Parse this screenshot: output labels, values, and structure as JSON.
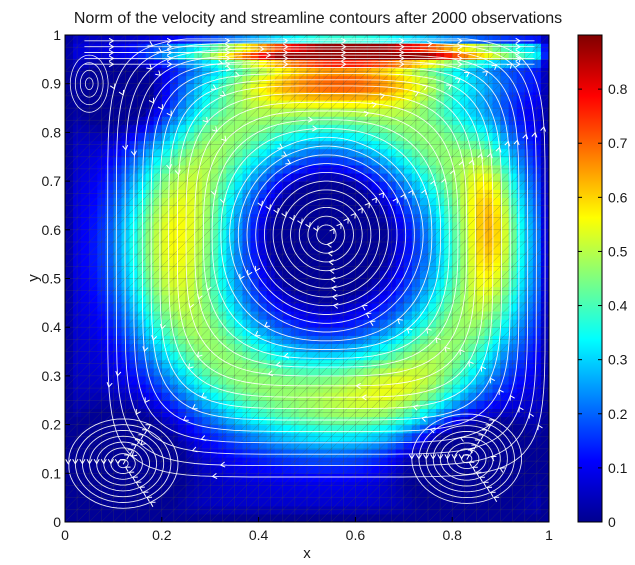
{
  "chart_data": {
    "type": "heatmap",
    "title": "Norm of the velocity and streamline contours after 2000 observations",
    "xlabel": "x",
    "ylabel": "y",
    "xlim": [
      0,
      1
    ],
    "ylim": [
      0,
      1
    ],
    "x_ticks": [
      "0",
      "0.2",
      "0.4",
      "0.6",
      "0.8",
      "1"
    ],
    "y_ticks": [
      "0",
      "0.1",
      "0.2",
      "0.3",
      "0.4",
      "0.5",
      "0.6",
      "0.7",
      "0.8",
      "0.9",
      "1"
    ],
    "colorbar": {
      "range": [
        0,
        0.9
      ],
      "ticks": [
        "0",
        "0.1",
        "0.2",
        "0.3",
        "0.4",
        "0.5",
        "0.6",
        "0.7",
        "0.8"
      ],
      "colormap": "jet"
    },
    "vortices": [
      {
        "name": "primary",
        "center": [
          0.54,
          0.59
        ]
      },
      {
        "name": "bottom-left",
        "center": [
          0.12,
          0.12
        ]
      },
      {
        "name": "bottom-right",
        "center": [
          0.83,
          0.13
        ]
      }
    ],
    "streamline_color": "#ffffff",
    "mesh_color": "#4a4a4a"
  }
}
